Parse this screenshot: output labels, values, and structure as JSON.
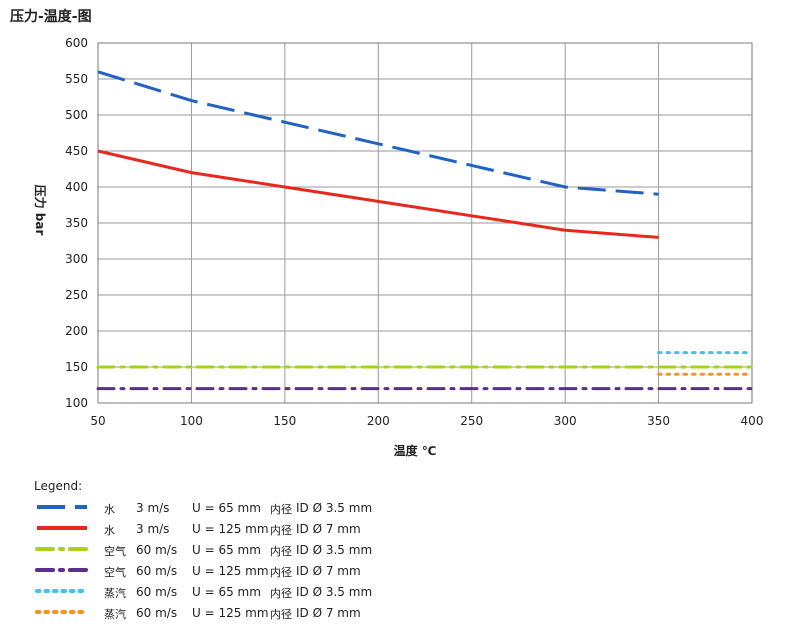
{
  "title": "压力-温度-图",
  "chart_data": {
    "type": "line",
    "xlabel": "温度 ℃",
    "ylabel": "压力 bar",
    "xlim": [
      50,
      400
    ],
    "ylim": [
      100,
      600
    ],
    "xticks": [
      50,
      100,
      150,
      200,
      250,
      300,
      350,
      400
    ],
    "yticks": [
      100,
      150,
      200,
      250,
      300,
      350,
      400,
      450,
      500,
      550,
      600
    ],
    "grid": true,
    "legend_position": "bottom",
    "series": [
      {
        "color": "#1f63c6",
        "dash": "dash",
        "x": [
          50,
          100,
          150,
          200,
          250,
          300,
          350
        ],
        "y": [
          560,
          520,
          490,
          460,
          430,
          400,
          390
        ]
      },
      {
        "color": "#e8281c",
        "dash": "solid",
        "x": [
          50,
          100,
          150,
          200,
          250,
          300,
          350
        ],
        "y": [
          450,
          420,
          400,
          380,
          360,
          340,
          330
        ]
      },
      {
        "color": "#a6d31a",
        "dash": "dashdot",
        "x": [
          50,
          400
        ],
        "y": [
          150,
          150
        ]
      },
      {
        "color": "#5b2d91",
        "dash": "dashdot",
        "x": [
          50,
          400
        ],
        "y": [
          120,
          120
        ]
      },
      {
        "color": "#3ec3f0",
        "dash": "dot",
        "x": [
          350,
          400
        ],
        "y": [
          170,
          170
        ]
      },
      {
        "color": "#f7941d",
        "dash": "dot",
        "x": [
          350,
          400
        ],
        "y": [
          140,
          140
        ]
      }
    ]
  },
  "legend": {
    "title": "Legend:",
    "rows": [
      {
        "medium": "水",
        "speed": "3 m/s",
        "u": "U = 65 mm",
        "id_label": "内径",
        "id": "ID Ø 3.5 mm"
      },
      {
        "medium": "水",
        "speed": "3 m/s",
        "u": "U = 125 mm",
        "id_label": "内径",
        "id": "ID Ø 7 mm"
      },
      {
        "medium": "空气",
        "speed": "60 m/s",
        "u": "U = 65 mm",
        "id_label": "内径",
        "id": "ID Ø 3.5 mm"
      },
      {
        "medium": "空气",
        "speed": "60 m/s",
        "u": "U = 125 mm",
        "id_label": "内径",
        "id": "ID Ø 7 mm"
      },
      {
        "medium": "蒸汽",
        "speed": "60 m/s",
        "u": "U = 65 mm",
        "id_label": "内径",
        "id": "ID Ø 3.5 mm"
      },
      {
        "medium": "蒸汽",
        "speed": "60 m/s",
        "u": "U = 125 mm",
        "id_label": "内径",
        "id": "ID Ø 7 mm"
      }
    ]
  }
}
